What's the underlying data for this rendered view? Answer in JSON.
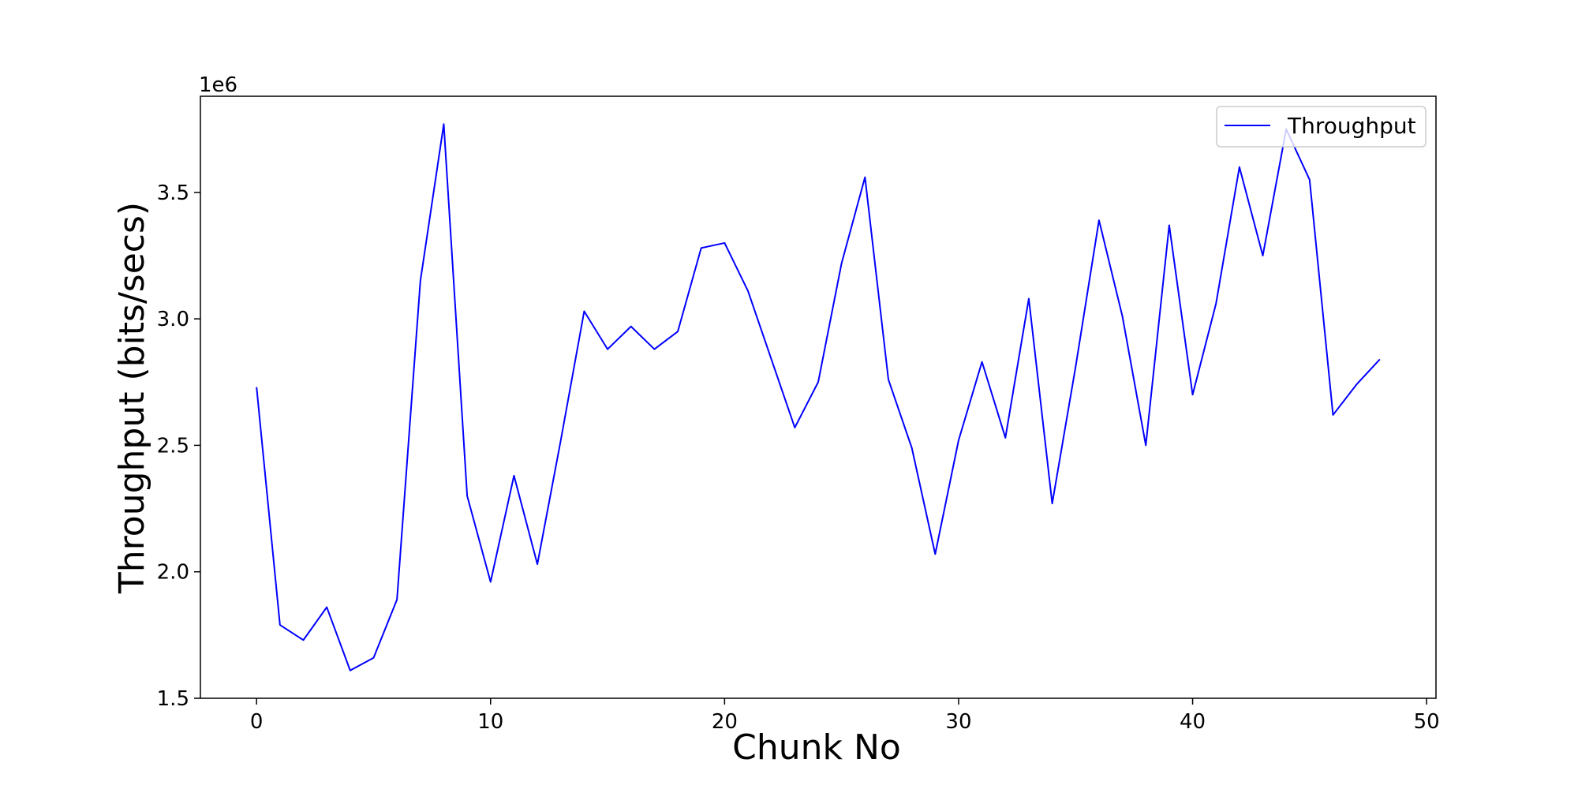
{
  "chart_data": {
    "type": "line",
    "title": "",
    "xlabel": "Chunk No",
    "ylabel": "Throughput (bits/secs)",
    "y_offset_label": "1e6",
    "xlim": [
      -2.4,
      50.4
    ],
    "ylim": [
      1.5,
      3.88
    ],
    "x_ticks": [
      0,
      10,
      20,
      30,
      40,
      50
    ],
    "x_tick_labels": [
      "0",
      "10",
      "20",
      "30",
      "40",
      "50"
    ],
    "y_ticks": [
      1.5,
      2.0,
      2.5,
      3.0,
      3.5
    ],
    "y_tick_labels": [
      "1.5",
      "2.0",
      "2.5",
      "3.0",
      "3.5"
    ],
    "grid": false,
    "legend": {
      "position": "top-right",
      "entries": [
        "Throughput"
      ]
    },
    "series": [
      {
        "name": "Throughput",
        "color": "#0000ff",
        "x": [
          0,
          1,
          2,
          3,
          4,
          5,
          6,
          7,
          8,
          9,
          10,
          11,
          12,
          13,
          14,
          15,
          16,
          17,
          18,
          19,
          20,
          21,
          22,
          23,
          24,
          25,
          26,
          27,
          28,
          29,
          30,
          31,
          32,
          33,
          34,
          35,
          36,
          37,
          38,
          39,
          40,
          41,
          42,
          43,
          44,
          45,
          46,
          47,
          48
        ],
        "values": [
          2.73,
          1.79,
          1.73,
          1.86,
          1.61,
          1.66,
          1.89,
          3.15,
          3.77,
          2.3,
          1.96,
          2.38,
          2.03,
          2.52,
          3.03,
          2.88,
          2.97,
          2.88,
          2.95,
          3.28,
          3.3,
          3.11,
          2.84,
          2.57,
          2.75,
          3.22,
          3.56,
          2.76,
          2.49,
          2.07,
          2.52,
          2.83,
          2.53,
          3.08,
          2.27,
          2.81,
          3.39,
          3.01,
          2.5,
          3.37,
          2.7,
          3.06,
          3.6,
          3.25,
          3.75,
          3.55,
          2.62,
          2.74,
          2.84
        ]
      }
    ]
  }
}
